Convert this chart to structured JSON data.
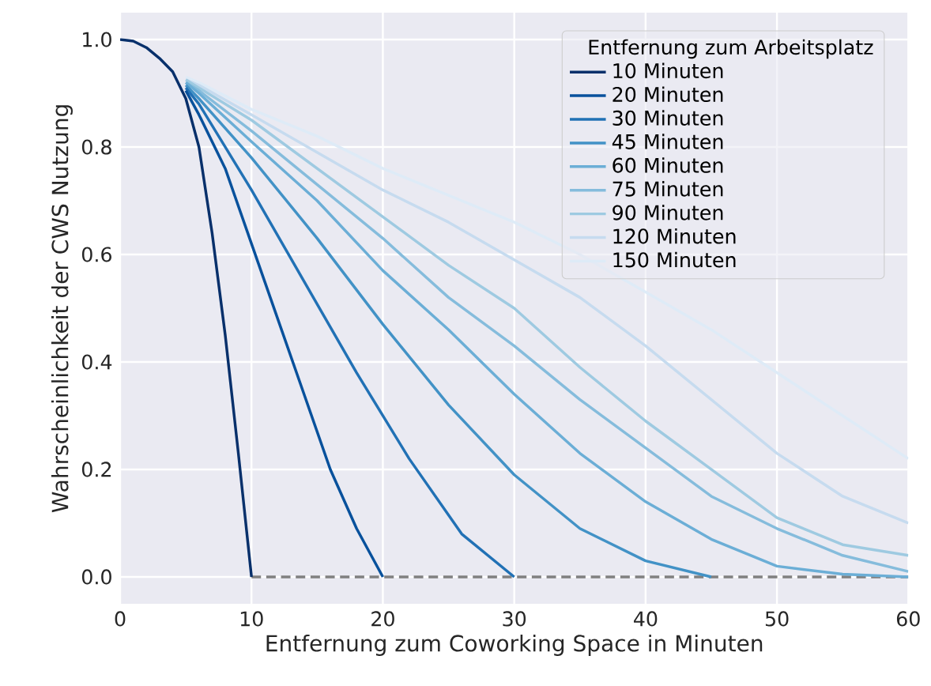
{
  "chart_data": {
    "type": "line",
    "xlabel": "Entfernung zum Coworking Space in Minuten",
    "ylabel": "Wahrscheinlichkeit der CWS Nutzung",
    "legend_title": "Entfernung zum Arbeitsplatz",
    "xlim": [
      0,
      60
    ],
    "ylim": [
      -0.05,
      1.05
    ],
    "xticks": [
      0,
      10,
      20,
      30,
      40,
      50,
      60
    ],
    "yticks": [
      {
        "value": 0,
        "label": "0.0"
      },
      {
        "value": 0.2,
        "label": "0.2"
      },
      {
        "value": 0.4,
        "label": "0.4"
      },
      {
        "value": 0.6,
        "label": "0.6"
      },
      {
        "value": 0.8,
        "label": "0.8"
      },
      {
        "value": 1,
        "label": "1.0"
      }
    ],
    "grid": true,
    "legend": "top right",
    "line_style": "solid",
    "marker": "none",
    "series": [
      {
        "name": "10 Minuten",
        "color": "#08306b",
        "x": [
          0,
          1,
          2,
          3,
          4,
          5,
          6,
          7,
          8,
          9,
          10
        ],
        "values": [
          1.0,
          0.997,
          0.985,
          0.965,
          0.94,
          0.89,
          0.8,
          0.64,
          0.45,
          0.23,
          0
        ]
      },
      {
        "name": "20 Minuten",
        "color": "#08519c",
        "x": [
          5,
          6,
          8,
          10,
          12,
          14,
          16,
          18,
          20
        ],
        "values": [
          0.905,
          0.86,
          0.76,
          0.62,
          0.48,
          0.34,
          0.2,
          0.09,
          0
        ]
      },
      {
        "name": "30 Minuten",
        "color": "#2171b5",
        "x": [
          5,
          6,
          10,
          14,
          18,
          22,
          26,
          30
        ],
        "values": [
          0.91,
          0.88,
          0.72,
          0.55,
          0.38,
          0.22,
          0.08,
          0
        ]
      },
      {
        "name": "45 Minuten",
        "color": "#4292c6",
        "x": [
          5,
          6,
          10,
          15,
          20,
          25,
          30,
          35,
          40,
          45
        ],
        "values": [
          0.915,
          0.89,
          0.78,
          0.63,
          0.47,
          0.32,
          0.19,
          0.09,
          0.03,
          0
        ]
      },
      {
        "name": "60 Minuten",
        "color": "#6baed6",
        "x": [
          5,
          6,
          10,
          15,
          20,
          25,
          30,
          35,
          40,
          45,
          50,
          55,
          60
        ],
        "values": [
          0.92,
          0.9,
          0.81,
          0.7,
          0.57,
          0.46,
          0.34,
          0.23,
          0.14,
          0.07,
          0.02,
          0.005,
          0
        ]
      },
      {
        "name": "75 Minuten",
        "color": "#85bcdc",
        "x": [
          5,
          6,
          10,
          15,
          20,
          25,
          30,
          35,
          40,
          45,
          50,
          55,
          60
        ],
        "values": [
          0.92,
          0.905,
          0.83,
          0.73,
          0.63,
          0.52,
          0.43,
          0.33,
          0.24,
          0.15,
          0.09,
          0.04,
          0.01
        ]
      },
      {
        "name": "90 Minuten",
        "color": "#9ecae1",
        "x": [
          5,
          6,
          10,
          15,
          20,
          25,
          30,
          35,
          40,
          45,
          50,
          55,
          60
        ],
        "values": [
          0.925,
          0.91,
          0.85,
          0.76,
          0.67,
          0.58,
          0.5,
          0.39,
          0.29,
          0.2,
          0.11,
          0.06,
          0.04
        ]
      },
      {
        "name": "120 Minuten",
        "color": "#c6dbef",
        "x": [
          5,
          6,
          10,
          15,
          20,
          25,
          30,
          35,
          40,
          45,
          50,
          55,
          60
        ],
        "values": [
          0.925,
          0.915,
          0.86,
          0.79,
          0.72,
          0.66,
          0.59,
          0.52,
          0.43,
          0.33,
          0.23,
          0.15,
          0.1
        ]
      },
      {
        "name": "150 Minuten",
        "color": "#deebf7",
        "x": [
          5,
          6,
          10,
          15,
          20,
          25,
          30,
          35,
          40,
          45,
          50,
          55,
          60
        ],
        "values": [
          0.93,
          0.92,
          0.87,
          0.82,
          0.76,
          0.71,
          0.66,
          0.6,
          0.53,
          0.46,
          0.38,
          0.3,
          0.22
        ]
      },
      {
        "color": "#808080",
        "line_style": "dashed",
        "x": [
          10,
          60
        ],
        "values": [
          0,
          0
        ]
      }
    ]
  }
}
